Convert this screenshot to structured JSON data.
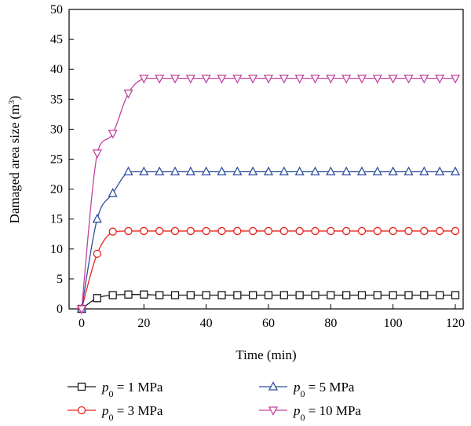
{
  "chart_data": {
    "type": "line",
    "xlabel": "Time (min)",
    "ylabel": {
      "text": "Damaged area size (m",
      "sup": "3",
      "close": ")"
    },
    "xlim": [
      0,
      120
    ],
    "ylim": [
      0,
      50
    ],
    "xticks": [
      0,
      20,
      40,
      60,
      80,
      100,
      120
    ],
    "yticks": [
      0,
      5,
      10,
      15,
      20,
      25,
      30,
      35,
      40,
      45,
      50
    ],
    "grid": false,
    "legend_placement": "bottom",
    "x": [
      0,
      5,
      10,
      15,
      20,
      25,
      30,
      35,
      40,
      45,
      50,
      55,
      60,
      65,
      70,
      75,
      80,
      85,
      90,
      95,
      100,
      105,
      110,
      115,
      120
    ],
    "series": [
      {
        "label": {
          "sym": "p",
          "sub": "0",
          "text": " = 1 MPa"
        },
        "color": "#1a1a1a",
        "marker": "square",
        "values": [
          0,
          1.8,
          2.3,
          2.4,
          2.4,
          2.3,
          2.3,
          2.3,
          2.3,
          2.3,
          2.3,
          2.3,
          2.3,
          2.3,
          2.3,
          2.3,
          2.3,
          2.3,
          2.3,
          2.3,
          2.3,
          2.3,
          2.3,
          2.3,
          2.3
        ]
      },
      {
        "label": {
          "sym": "p",
          "sub": "0",
          "text": " = 3 MPa"
        },
        "color": "#e8231f",
        "marker": "circle",
        "values": [
          0,
          9.2,
          12.9,
          13.0,
          13.0,
          13.0,
          13.0,
          13.0,
          13.0,
          13.0,
          13.0,
          13.0,
          13.0,
          13.0,
          13.0,
          13.0,
          13.0,
          13.0,
          13.0,
          13.0,
          13.0,
          13.0,
          13.0,
          13.0,
          13.0
        ]
      },
      {
        "label": {
          "sym": "p",
          "sub": "0",
          "text": " = 5 MPa"
        },
        "color": "#2e4e9e",
        "marker": "triangle-up",
        "values": [
          0,
          15.0,
          19.3,
          22.9,
          22.9,
          22.9,
          22.9,
          22.9,
          22.9,
          22.9,
          22.9,
          22.9,
          22.9,
          22.9,
          22.9,
          22.9,
          22.9,
          22.9,
          22.9,
          22.9,
          22.9,
          22.9,
          22.9,
          22.9,
          22.9
        ]
      },
      {
        "label": {
          "sym": "p",
          "sub": "0",
          "text": " = 10 MPa"
        },
        "color": "#c0449e",
        "marker": "triangle-down",
        "values": [
          0,
          26.0,
          29.3,
          36.0,
          38.5,
          38.5,
          38.5,
          38.5,
          38.5,
          38.5,
          38.5,
          38.5,
          38.5,
          38.5,
          38.5,
          38.5,
          38.5,
          38.5,
          38.5,
          38.5,
          38.5,
          38.5,
          38.5,
          38.5,
          38.5
        ]
      }
    ]
  }
}
